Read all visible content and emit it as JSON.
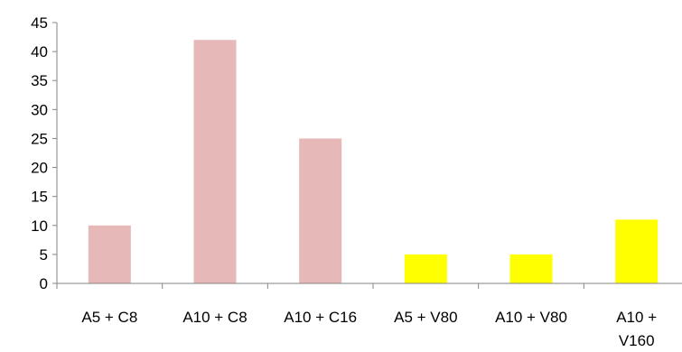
{
  "chart_data": {
    "type": "bar",
    "categories": [
      "A5 + C8",
      "A10 + C8",
      "A10 + C16",
      "A5 + V80",
      "A10 + V80",
      "A10 + V160"
    ],
    "category_label_lines": [
      [
        "A5 + C8"
      ],
      [
        "A10 + C8"
      ],
      [
        "A10 + C16"
      ],
      [
        "A5 + V80"
      ],
      [
        "A10 + V80"
      ],
      [
        "A10 +",
        "V160"
      ]
    ],
    "values": [
      10,
      42,
      25,
      5,
      5,
      11
    ],
    "bar_colors": [
      "#e6b8b7",
      "#e6b8b7",
      "#e6b8b7",
      "#ffff00",
      "#ffff00",
      "#ffff00"
    ],
    "ylim": [
      0,
      45
    ],
    "yticks": [
      0,
      5,
      10,
      15,
      20,
      25,
      30,
      35,
      40,
      45
    ],
    "title": "",
    "xlabel": "",
    "ylabel": "",
    "grid": false,
    "legend": "none",
    "axis_color": "#868686"
  }
}
